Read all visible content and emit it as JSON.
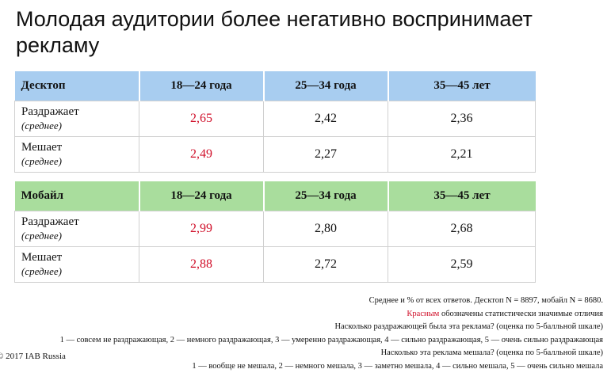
{
  "title": "Молодая аудитории более негативно воспринимает рекламу",
  "colors": {
    "desktop_header": "#a8cdf0",
    "mobile_header": "#a9dd9d",
    "significant": "#d0102a"
  },
  "tables": {
    "desktop": {
      "headers": [
        "Десктоп",
        "18—24 года",
        "25—34 года",
        "35—45 лет"
      ],
      "rows": [
        {
          "label": "Раздражает",
          "sublabel": "(среднее)",
          "values": [
            "2,65",
            "2,42",
            "2,36"
          ]
        },
        {
          "label": "Мешает",
          "sublabel": "(среднее)",
          "values": [
            "2,49",
            "2,27",
            "2,21"
          ]
        }
      ]
    },
    "mobile": {
      "headers": [
        "Мобайл",
        "18—24 года",
        "25—34 года",
        "35—45 лет"
      ],
      "rows": [
        {
          "label": "Раздражает",
          "sublabel": "(среднее)",
          "values": [
            "2,99",
            "2,80",
            "2,68"
          ]
        },
        {
          "label": "Мешает",
          "sublabel": "(среднее)",
          "values": [
            "2,88",
            "2,72",
            "2,59"
          ]
        }
      ]
    }
  },
  "notes": {
    "line1": "Среднее и % от всех ответов. Десктоп N = 8897, мобайл N = 8680.",
    "line2_red": "Красным",
    "line2_rest": " обозначены статистически значимые отличия",
    "line3": "Насколько раздражающей была эта реклама? (оценка по 5-балльной шкале)",
    "line4": "1 — совсем не раздражающая, 2 — немного раздражающая, 3 — умеренно раздражающая, 4 — сильно раздражающая, 5 — очень сильно раздражающая",
    "line5": "Насколько эта реклама мешала? (оценка по 5-балльной шкале)",
    "line6": "1 — вообще не мешала, 2 — немного мешала, 3 — заметно мешала,  4 — сильно мешала, 5 — очень сильно мешала"
  },
  "copyright": "© 2017 IAB Russia"
}
